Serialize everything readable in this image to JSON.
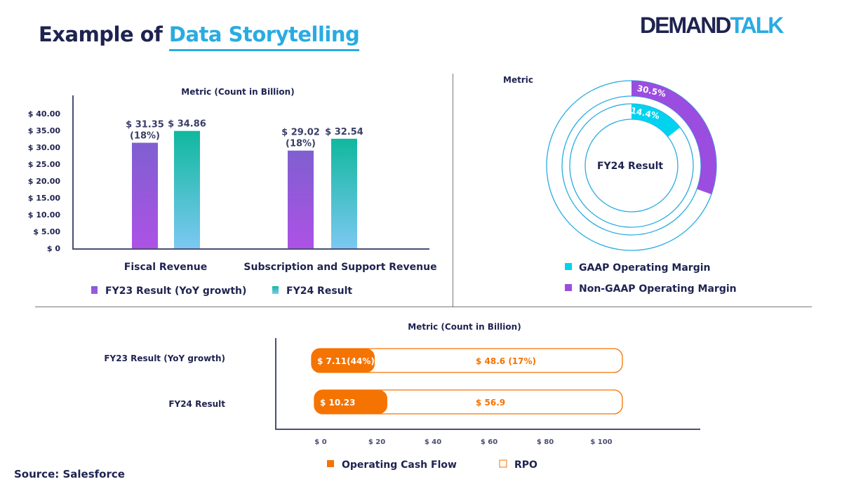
{
  "header": {
    "title_prefix": "Example of",
    "title_highlight": "Data Storytelling",
    "logo_text_a": "DEMAND",
    "logo_text_b": "TALK"
  },
  "source": "Source: Salesforce",
  "colors": {
    "fy23": "#9b51e0",
    "fy24": "#14b8a0",
    "gaap": "#00d2f0",
    "non_gaap": "#9b4de0",
    "orange": "#f57300",
    "navy": "#1e2350",
    "ring": "#29abe2"
  },
  "chart_data": [
    {
      "type": "bar",
      "title": "Metric (Count in Billion)",
      "categories": [
        "Fiscal Revenue",
        "Subscription and Support Revenue"
      ],
      "series": [
        {
          "name": "FY23 Result (YoY growth)",
          "values": [
            31.35,
            29.02
          ],
          "labels": [
            "$ 31.35\n(18%)",
            "$ 29.02\n(18%)"
          ]
        },
        {
          "name": "FY24 Result",
          "values": [
            34.86,
            32.54
          ],
          "labels": [
            "$ 34.86",
            "$ 32.54"
          ]
        }
      ],
      "yticks": [
        "$ 0",
        "$ 5.00",
        "$ 10.00",
        "$ 15.00",
        "$ 20.00",
        "$ 25.00",
        "$ 30.00",
        "$ 35.00",
        "$ 40.00"
      ],
      "ylim": [
        0,
        40
      ],
      "grid": false,
      "legend": "bottom"
    },
    {
      "type": "pie",
      "subtype": "radial-rings",
      "title": "Metric",
      "center_label": "FY24 Result",
      "series": [
        {
          "name": "GAAP Operating Margin",
          "value": 14.4,
          "label": "14.4%"
        },
        {
          "name": "Non-GAAP Operating Margin",
          "value": 30.5,
          "label": "30.5%"
        }
      ],
      "legend": "bottom"
    },
    {
      "type": "bar",
      "orientation": "horizontal",
      "title": "Metric (Count in Billion)",
      "categories": [
        "FY23 Result (YoY growth)",
        "FY24 Result"
      ],
      "series": [
        {
          "name": "Operating Cash Flow",
          "values": [
            7.11,
            10.23
          ],
          "labels": [
            "$ 7.11(44%)",
            "$ 10.23"
          ]
        },
        {
          "name": "RPO",
          "values": [
            48.6,
            56.9
          ],
          "labels": [
            "$ 48.6 (17%)",
            "$ 56.9"
          ]
        }
      ],
      "xticks": [
        "$ 0",
        "$ 20",
        "$ 40",
        "$ 60",
        "$ 80",
        "$ 100"
      ],
      "xlim": [
        0,
        100
      ],
      "legend": "bottom"
    }
  ]
}
